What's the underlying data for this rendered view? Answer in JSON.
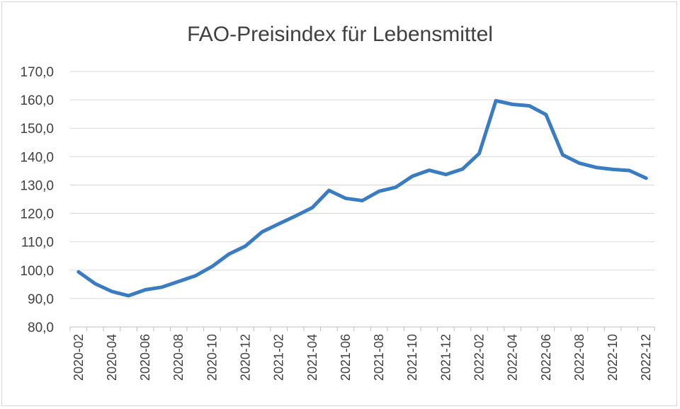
{
  "chart_data": {
    "type": "line",
    "title": "FAO-Preisindex für Lebensmittel",
    "xlabel": "",
    "ylabel": "",
    "ylim": [
      80,
      170
    ],
    "y_ticks": [
      "80,0",
      "90,0",
      "100,0",
      "110,0",
      "120,0",
      "130,0",
      "140,0",
      "150,0",
      "160,0",
      "170,0"
    ],
    "x_tick_labels": [
      "2020-02",
      "2020-04",
      "2020-06",
      "2020-08",
      "2020-10",
      "2020-12",
      "2021-02",
      "2021-04",
      "2021-06",
      "2021-08",
      "2021-10",
      "2021-12",
      "2022-02",
      "2022-04",
      "2022-06",
      "2022-08",
      "2022-10",
      "2022-12"
    ],
    "grid": true,
    "legend": "none",
    "colors": {
      "line": "#3a7cc1"
    },
    "categories": [
      "2020-02",
      "2020-03",
      "2020-04",
      "2020-05",
      "2020-06",
      "2020-07",
      "2020-08",
      "2020-09",
      "2020-10",
      "2020-11",
      "2020-12",
      "2021-01",
      "2021-02",
      "2021-03",
      "2021-04",
      "2021-05",
      "2021-06",
      "2021-07",
      "2021-08",
      "2021-09",
      "2021-10",
      "2021-11",
      "2021-12",
      "2022-01",
      "2022-02",
      "2022-03",
      "2022-04",
      "2022-05",
      "2022-06",
      "2022-07",
      "2022-08",
      "2022-09",
      "2022-10",
      "2022-11",
      "2022-12"
    ],
    "series": [
      {
        "values": [
          99.4,
          95.2,
          92.5,
          91.0,
          93.1,
          94.0,
          96.0,
          98.0,
          101.3,
          105.6,
          108.5,
          113.5,
          116.3,
          119.1,
          122.0,
          128.1,
          125.3,
          124.5,
          127.8,
          129.2,
          133.1,
          135.2,
          133.7,
          135.6,
          141.1,
          159.7,
          158.4,
          157.9,
          154.8,
          140.6,
          137.7,
          136.2,
          135.5,
          135.1,
          132.4
        ]
      }
    ]
  }
}
